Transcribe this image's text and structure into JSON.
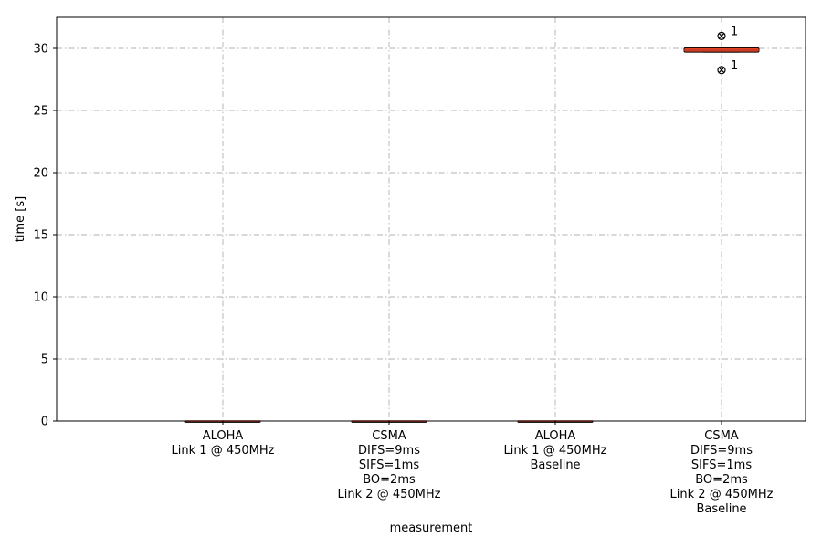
{
  "chart_data": {
    "type": "box",
    "xlabel": "measurement",
    "ylabel": "time [s]",
    "ylim": [
      0,
      32.5
    ],
    "yticks": [
      0,
      5,
      10,
      15,
      20,
      25,
      30
    ],
    "grid": true,
    "colors": {
      "box_fill": "#e8431f",
      "median": "#c0392b",
      "outline": "#000000",
      "grid": "#b0b0b0"
    },
    "categories": [
      {
        "label_lines": [
          "ALOHA",
          "Link 1 @ 450MHz"
        ],
        "box": {
          "min": 0,
          "q1": 0,
          "median": 0,
          "q3": 0,
          "max": 0
        },
        "fliers": []
      },
      {
        "label_lines": [
          "CSMA",
          "DIFS=9ms",
          "SIFS=1ms",
          "BO=2ms",
          "Link 2 @ 450MHz"
        ],
        "box": {
          "min": 0,
          "q1": 0,
          "median": 0,
          "q3": 0,
          "max": 0
        },
        "fliers": []
      },
      {
        "label_lines": [
          "ALOHA",
          "Link 1 @ 450MHz",
          "Baseline"
        ],
        "box": {
          "min": 0,
          "q1": 0,
          "median": 0,
          "q3": 0,
          "max": 0
        },
        "fliers": []
      },
      {
        "label_lines": [
          "CSMA",
          "DIFS=9ms",
          "SIFS=1ms",
          "BO=2ms",
          "Link 2 @ 450MHz",
          "Baseline"
        ],
        "box": {
          "min": 29.7,
          "q1": 29.7,
          "median": 29.85,
          "q3": 30.05,
          "max": 30.1
        },
        "fliers": [
          {
            "value": 31.0,
            "label": "1"
          },
          {
            "value": 28.25,
            "label": "1"
          }
        ]
      }
    ]
  }
}
